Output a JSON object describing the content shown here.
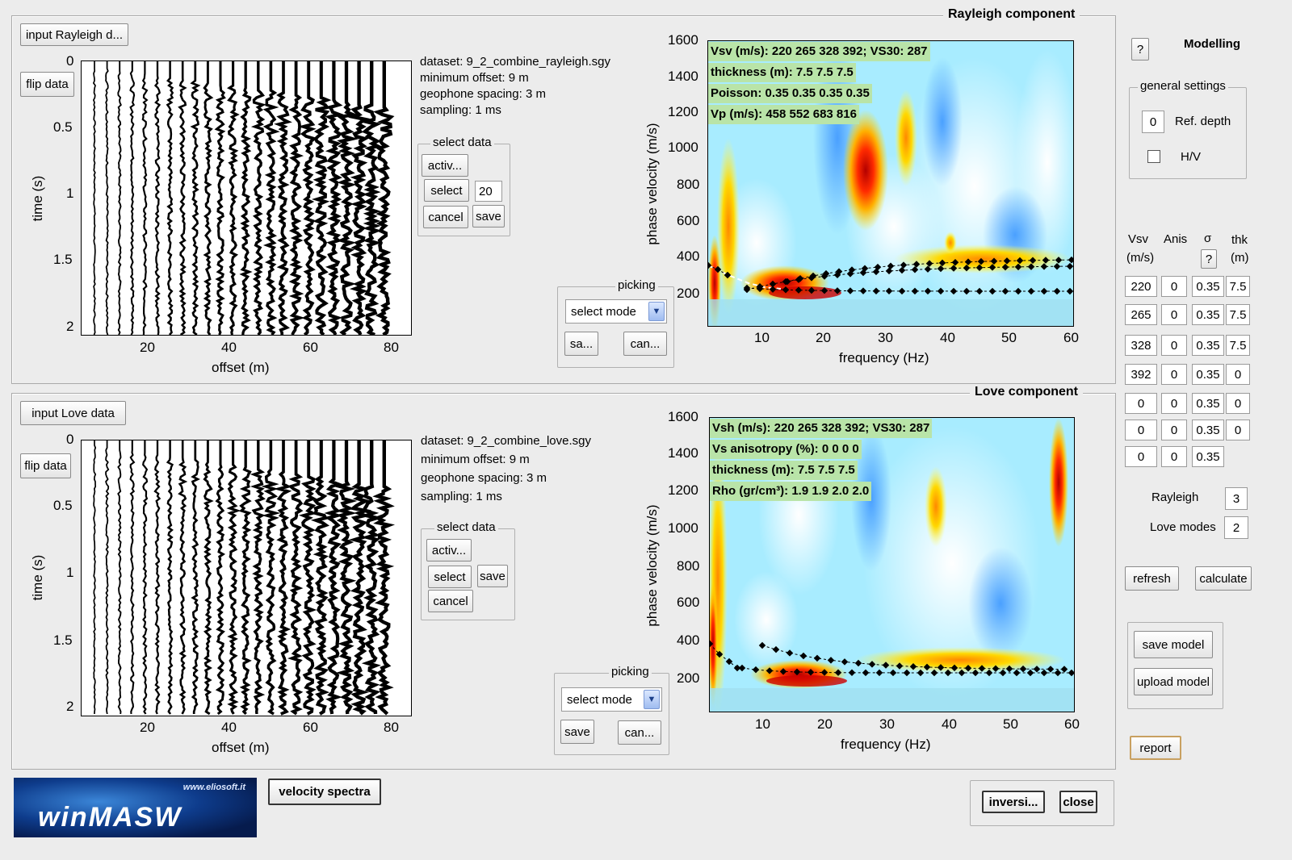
{
  "rayleigh": {
    "title": "Rayleigh component",
    "input_button": "input Rayleigh d...",
    "flip_button": "flip data",
    "info": {
      "dataset": "dataset: 9_2_combine_rayleigh.sgy",
      "min_offset": "minimum offset: 9 m",
      "spacing": "geophone spacing: 3 m",
      "sampling": "sampling: 1 ms"
    },
    "select_data": {
      "label": "select data",
      "activ": "activ...",
      "select": "select",
      "value": "20",
      "cancel": "cancel",
      "save": "save"
    },
    "picking": {
      "label": "picking",
      "mode": "select mode",
      "save": "sa...",
      "cancel": "can..."
    },
    "seismogram": {
      "ylabel": "time (s)",
      "xlabel": "offset (m)",
      "yticks": [
        "0",
        "0.5",
        "1",
        "1.5",
        "2"
      ],
      "xticks": [
        "20",
        "40",
        "60",
        "80"
      ]
    },
    "spectrum": {
      "ylabel": "phase velocity (m/s)",
      "xlabel": "frequency (Hz)",
      "yticks": [
        "1600",
        "1400",
        "1200",
        "1000",
        "800",
        "600",
        "400",
        "200"
      ],
      "xticks": [
        "10",
        "20",
        "30",
        "40",
        "50",
        "60"
      ],
      "overlay": [
        "Vsv (m/s): 220  265  328  392; VS30: 287",
        "thickness (m): 7.5    7.5    7.5",
        "Poisson: 0.35  0.35  0.35  0.35",
        "Vp (m/s): 458  552  683  816"
      ]
    }
  },
  "love": {
    "title": "Love component",
    "input_button": "input Love data",
    "flip_button": "flip data",
    "info": {
      "dataset": "dataset: 9_2_combine_love.sgy",
      "min_offset": "minimum offset: 9 m",
      "spacing": "geophone spacing: 3 m",
      "sampling": "sampling: 1 ms"
    },
    "select_data": {
      "label": "select data",
      "activ": "activ...",
      "select": "select",
      "save": "save",
      "cancel": "cancel"
    },
    "picking": {
      "label": "picking",
      "mode": "select mode",
      "save": "save",
      "cancel": "can..."
    },
    "seismogram": {
      "ylabel": "time (s)",
      "xlabel": "offset (m)",
      "yticks": [
        "0",
        "0.5",
        "1",
        "1.5",
        "2"
      ],
      "xticks": [
        "20",
        "40",
        "60",
        "80"
      ]
    },
    "spectrum": {
      "ylabel": "phase velocity (m/s)",
      "xlabel": "frequency (Hz)",
      "yticks": [
        "1600",
        "1400",
        "1200",
        "1000",
        "800",
        "600",
        "400",
        "200"
      ],
      "xticks": [
        "10",
        "20",
        "30",
        "40",
        "50",
        "60"
      ],
      "overlay": [
        "Vsh (m/s): 220  265  328  392; VS30: 287",
        "Vs anisotropy (%): 0  0  0  0",
        "thickness (m): 7.5    7.5    7.5",
        "Rho (gr/cm³): 1.9    1.9    2.0    2.0"
      ]
    }
  },
  "modelling": {
    "title": "Modelling",
    "help": "?",
    "general_label": "general settings",
    "ref_depth_value": "0",
    "ref_depth_label": "Ref. depth",
    "hv_label": "H/V",
    "headers": {
      "vsv": "Vsv",
      "vsv_unit": "(m/s)",
      "anis": "Anis",
      "sigma": "σ",
      "sigma_help": "?",
      "thk": "thk",
      "thk_unit": "(m)"
    },
    "rows": [
      [
        "220",
        "0",
        "0.35",
        "7.5"
      ],
      [
        "265",
        "0",
        "0.35",
        "7.5"
      ],
      [
        "328",
        "0",
        "0.35",
        "7.5"
      ],
      [
        "392",
        "0",
        "0.35",
        "0"
      ],
      [
        "0",
        "0",
        "0.35",
        "0"
      ],
      [
        "0",
        "0",
        "0.35",
        "0"
      ],
      [
        "0",
        "0",
        "0.35"
      ]
    ],
    "rayleigh_label": "Rayleigh",
    "rayleigh_modes": "3",
    "love_label": "Love modes",
    "love_modes": "2",
    "refresh": "refresh",
    "calculate": "calculate",
    "save_model": "save model",
    "upload_model": "upload model",
    "report": "report"
  },
  "bottom": {
    "velocity_spectra": "velocity spectra",
    "inversion": "inversi...",
    "close": "close",
    "logo_url": "www.eliosoft.it",
    "logo_text": "winMASW"
  },
  "colors": {
    "background": "#ececec",
    "overlay": "#b9e4a8",
    "spectrum_base": "#bfefff",
    "logo": "#0e3c8c"
  }
}
